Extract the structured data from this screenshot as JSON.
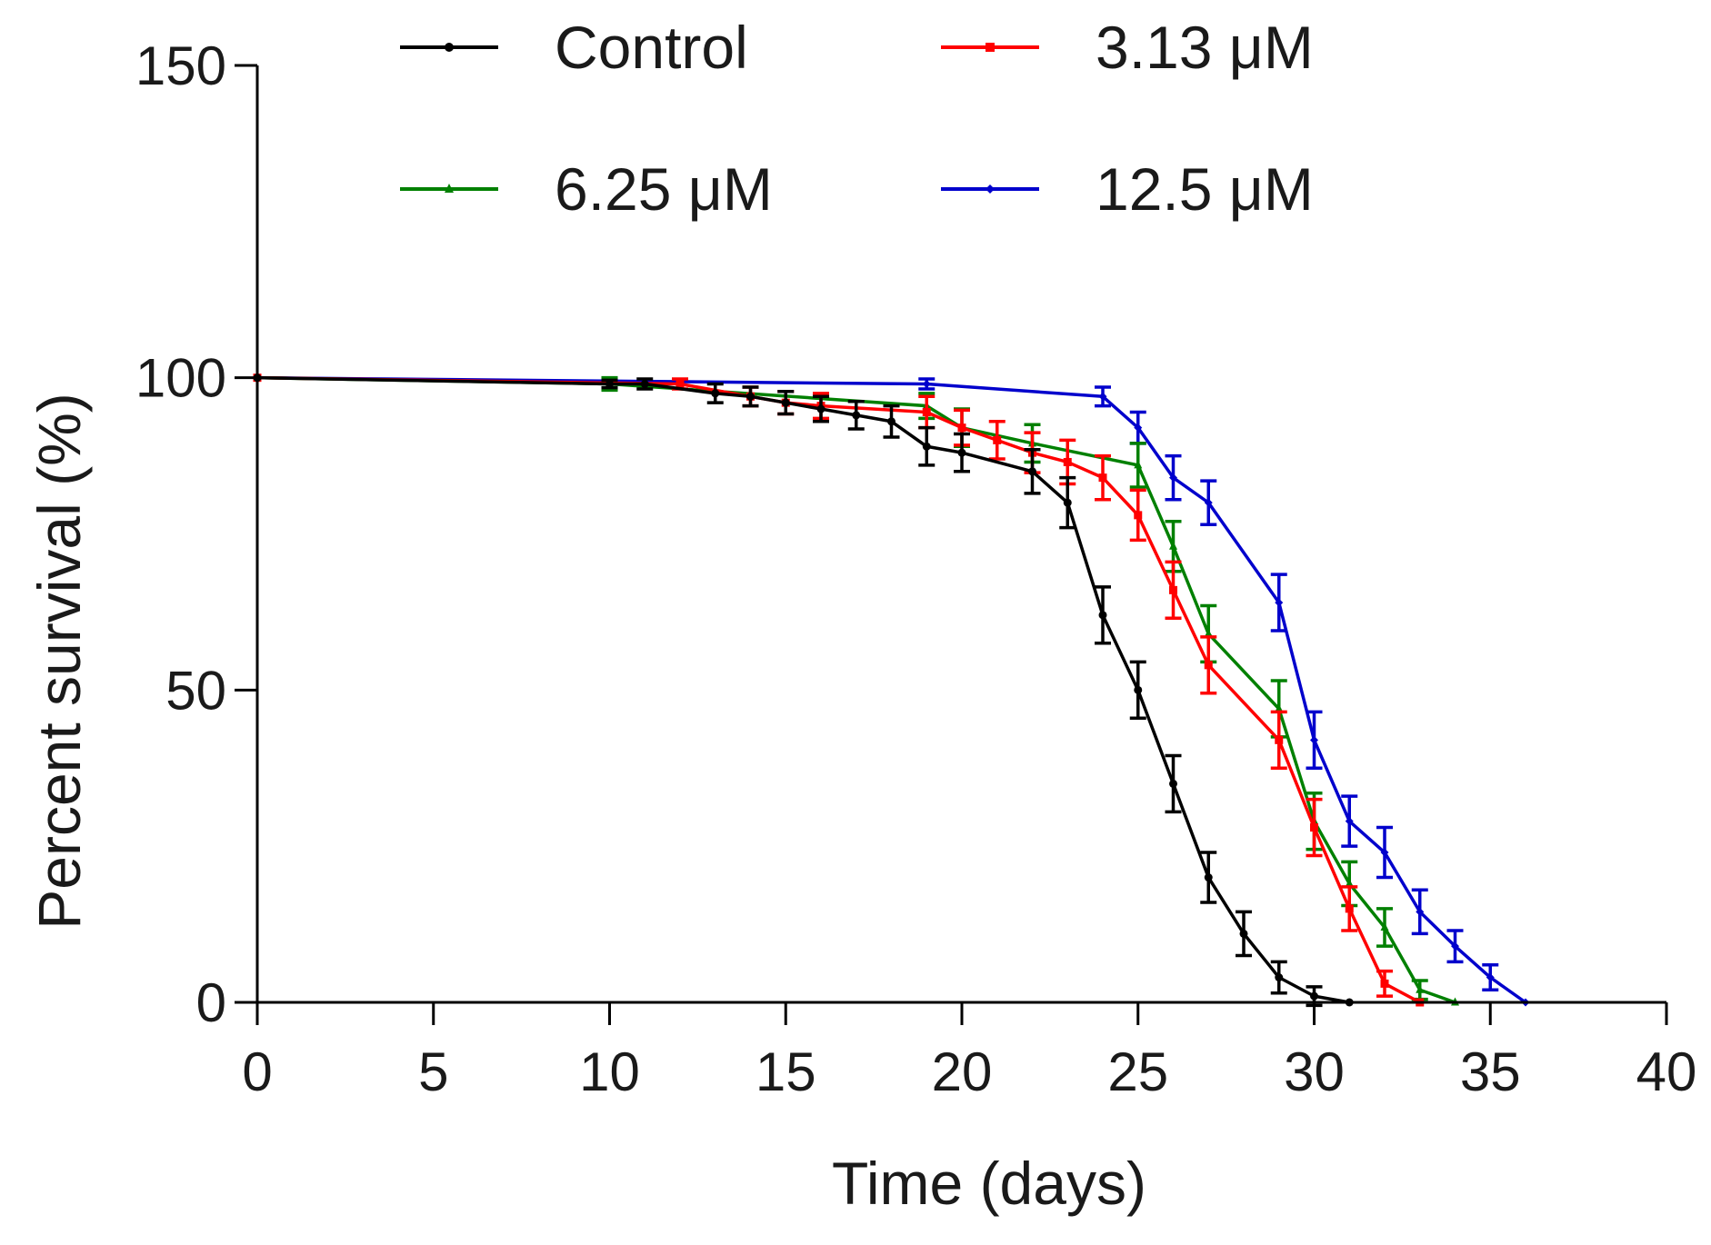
{
  "chart_data": {
    "type": "line",
    "xlabel": "Time (days)",
    "ylabel": "Percent survival (%)",
    "xlim": [
      0,
      40
    ],
    "ylim": [
      0,
      150
    ],
    "xticks": [
      0,
      5,
      10,
      15,
      20,
      25,
      30,
      35,
      40
    ],
    "yticks": [
      0,
      50,
      100,
      150
    ],
    "grid": false,
    "legend_position": "top",
    "series": [
      {
        "name": "Control",
        "color": "#000000",
        "marker": "circle",
        "x": [
          0,
          10,
          11,
          13,
          14,
          15,
          16,
          17,
          18,
          19,
          20,
          22,
          23,
          24,
          25,
          26,
          27,
          28,
          29,
          30,
          31
        ],
        "y": [
          100,
          99,
          99,
          97.5,
          97,
          96,
          95,
          94,
          93,
          89,
          88,
          85,
          80,
          62,
          50,
          35,
          20,
          11,
          4,
          1,
          0
        ],
        "err": [
          0,
          0.6,
          0.8,
          1.5,
          1.5,
          1.8,
          2.0,
          2.2,
          2.5,
          3.0,
          3.0,
          3.5,
          4.0,
          4.5,
          4.5,
          4.5,
          4.0,
          3.5,
          2.5,
          1.5,
          0
        ]
      },
      {
        "name": "3.13 μM",
        "color": "#ff0000",
        "marker": "square",
        "x": [
          0,
          12,
          14,
          15,
          16,
          19,
          20,
          21,
          22,
          23,
          24,
          25,
          26,
          27,
          29,
          30,
          31,
          32,
          33
        ],
        "y": [
          100,
          99,
          97,
          96,
          95.5,
          94.5,
          92,
          90,
          88,
          86.5,
          84,
          78,
          66,
          54,
          42,
          28,
          15,
          3,
          0
        ],
        "err": [
          0,
          0.8,
          1.5,
          1.8,
          2.0,
          2.5,
          2.8,
          3.0,
          3.2,
          3.5,
          3.5,
          4.0,
          4.5,
          4.5,
          4.5,
          4.5,
          3.5,
          2.0,
          0
        ]
      },
      {
        "name": "6.25 μM",
        "color": "#008000",
        "marker": "triangle",
        "x": [
          0,
          10,
          19,
          20,
          22,
          25,
          26,
          27,
          29,
          30,
          31,
          32,
          33,
          34
        ],
        "y": [
          100,
          99,
          95.5,
          92,
          89.5,
          86,
          73,
          59,
          47,
          29,
          19,
          12,
          2,
          0
        ],
        "err": [
          0,
          1.0,
          2.0,
          3.0,
          3.0,
          3.5,
          4.0,
          4.5,
          4.5,
          4.5,
          3.5,
          3.0,
          1.5,
          0
        ]
      },
      {
        "name": "12.5 μM",
        "color": "#0000cc",
        "marker": "diamond",
        "x": [
          0,
          19,
          24,
          25,
          26,
          27,
          29,
          30,
          31,
          32,
          33,
          34,
          35,
          36
        ],
        "y": [
          100,
          99,
          97,
          92,
          84,
          80,
          64,
          42,
          29,
          24,
          14.5,
          9,
          4,
          0
        ],
        "err": [
          0,
          0.8,
          1.5,
          2.5,
          3.5,
          3.5,
          4.5,
          4.5,
          4.0,
          4.0,
          3.5,
          2.5,
          2.0,
          0
        ]
      }
    ]
  }
}
